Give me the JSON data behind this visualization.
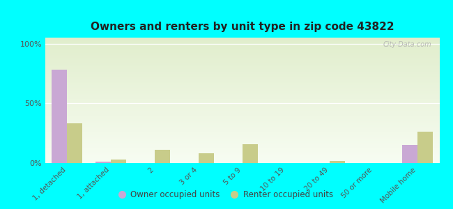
{
  "title": "Owners and renters by unit type in zip code 43822",
  "categories": [
    "1, detached",
    "1, attached",
    "2",
    "3 or 4",
    "5 to 9",
    "10 to 19",
    "20 to 49",
    "50 or more",
    "Mobile home"
  ],
  "owner_values": [
    78,
    1,
    0,
    0,
    0,
    0,
    0,
    0,
    15
  ],
  "renter_values": [
    33,
    3,
    11,
    8,
    16,
    0,
    2,
    0,
    26
  ],
  "owner_color": "#c9a8d4",
  "renter_color": "#c8cc8a",
  "background_color": "#00ffff",
  "ylabel_ticks": [
    "0%",
    "50%",
    "100%"
  ],
  "yticks": [
    0,
    50,
    100
  ],
  "ylim": [
    0,
    105
  ],
  "bar_width": 0.35,
  "legend_owner": "Owner occupied units",
  "legend_renter": "Renter occupied units",
  "watermark": "City-Data.com"
}
